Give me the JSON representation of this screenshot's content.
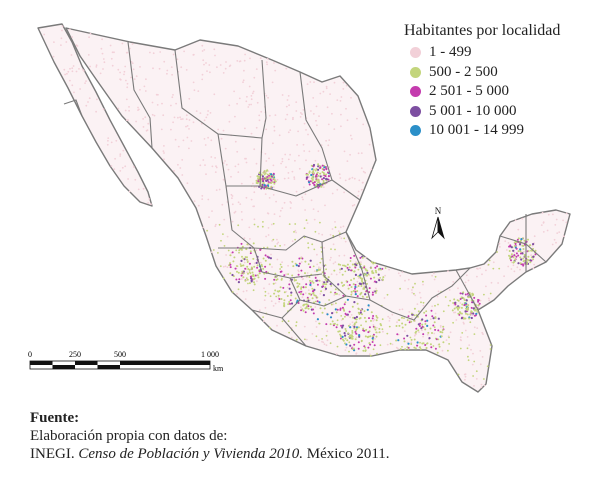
{
  "legend": {
    "title": "Habitantes por localidad",
    "items": [
      {
        "label": "1 - 499",
        "color": "#f2d0d8"
      },
      {
        "label": "500 - 2 500",
        "color": "#c3d57c"
      },
      {
        "label": "2 501 - 5 000",
        "color": "#c43bae"
      },
      {
        "label": "5 001 - 10 000",
        "color": "#7d4fa1"
      },
      {
        "label": "10 001 - 14 999",
        "color": "#2b8fc8"
      }
    ]
  },
  "north_label": "N",
  "scale_bar": {
    "ticks": [
      "0",
      "250",
      "500",
      "1 000"
    ],
    "unit": "km"
  },
  "source": {
    "label": "Fuente:",
    "line1": "Elaboración propia con datos de:",
    "line2_prefix": "INEGI. ",
    "line2_title": "Censo de Población y Vivienda 2010.",
    "line2_suffix": " México 2011."
  },
  "colors": {
    "border": "#7a7a7a",
    "land": "#fbf2f4"
  }
}
